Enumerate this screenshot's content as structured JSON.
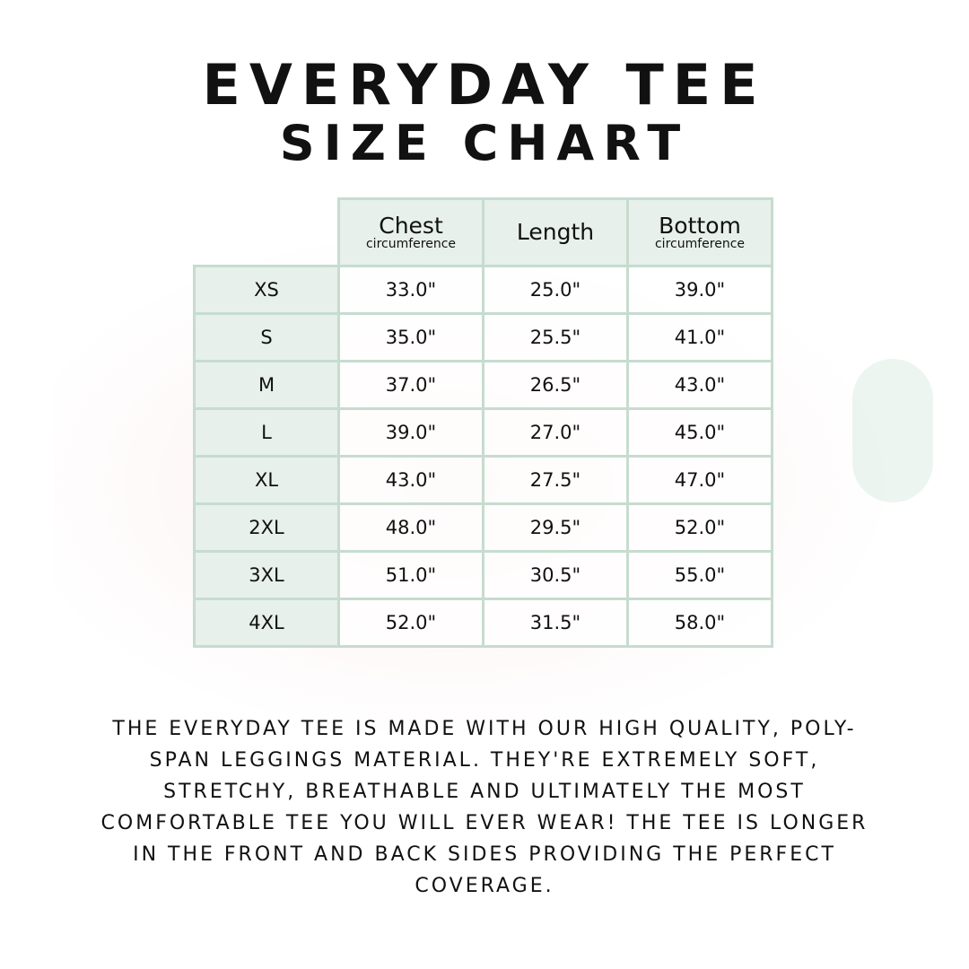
{
  "title_line1": "EVERYDAY TEE",
  "title_line2": "SIZE CHART",
  "colors": {
    "table_border": "#c6dccf",
    "header_bg": "#e7f0eb"
  },
  "table": {
    "headers": [
      {
        "label": "Chest",
        "sub": "circumference"
      },
      {
        "label": "Length",
        "sub": ""
      },
      {
        "label": "Bottom",
        "sub": "circumference"
      }
    ],
    "rows": [
      {
        "size": "XS",
        "values": [
          "33.0\"",
          "25.0\"",
          "39.0\""
        ]
      },
      {
        "size": "S",
        "values": [
          "35.0\"",
          "25.5\"",
          "41.0\""
        ]
      },
      {
        "size": "M",
        "values": [
          "37.0\"",
          "26.5\"",
          "43.0\""
        ]
      },
      {
        "size": "L",
        "values": [
          "39.0\"",
          "27.0\"",
          "45.0\""
        ]
      },
      {
        "size": "XL",
        "values": [
          "43.0\"",
          "27.5\"",
          "47.0\""
        ]
      },
      {
        "size": "2XL",
        "values": [
          "48.0\"",
          "29.5\"",
          "52.0\""
        ]
      },
      {
        "size": "3XL",
        "values": [
          "51.0\"",
          "30.5\"",
          "55.0\""
        ]
      },
      {
        "size": "4XL",
        "values": [
          "52.0\"",
          "31.5\"",
          "58.0\""
        ]
      }
    ]
  },
  "description": "The Everyday Tee is made with our high quality, poly-span leggings material. They're extremely soft, stretchy, breathable and ultimately the most comfortable tee you will ever wear! The tee is longer in the front and back sides providing the perfect coverage."
}
